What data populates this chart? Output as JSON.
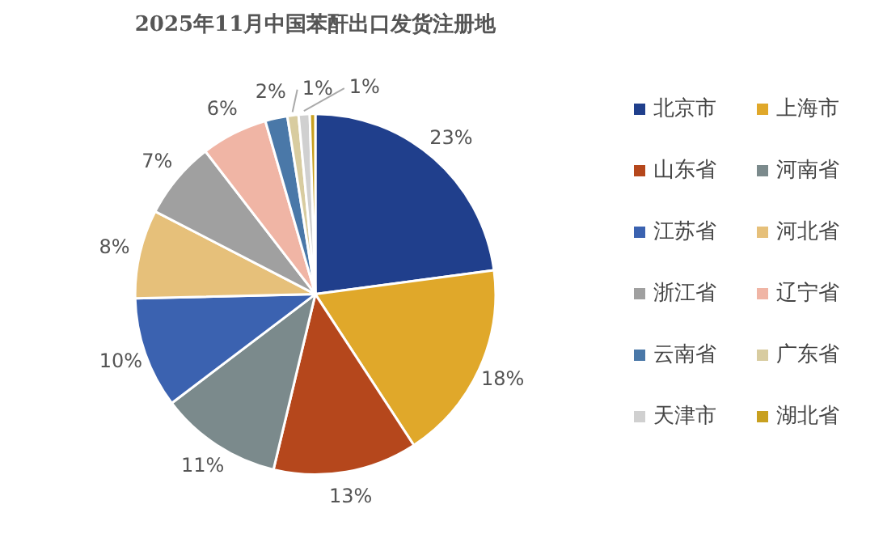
{
  "chart_data": {
    "type": "pie",
    "title": "2025年11月中国苯酐出口发货注册地",
    "categories": [
      "北京市",
      "上海市",
      "山东省",
      "河南省",
      "江苏省",
      "河北省",
      "浙江省",
      "辽宁省",
      "云南省",
      "广东省",
      "天津市",
      "湖北省"
    ],
    "values": [
      23,
      18,
      13,
      11,
      10,
      8,
      7,
      6,
      2,
      1,
      1,
      0.5
    ],
    "value_labels": [
      "23%",
      "18%",
      "13%",
      "11%",
      "10%",
      "8%",
      "7%",
      "6%",
      "2%",
      "1%",
      "1%",
      null
    ],
    "colors": [
      "#203f8c",
      "#e0a82a",
      "#b5471c",
      "#7b8a8c",
      "#3b62b0",
      "#e6c07a",
      "#a0a0a0",
      "#f0b5a5",
      "#4a78a8",
      "#d8cca0",
      "#d0d0d0",
      "#c8a020"
    ],
    "legend": "right"
  }
}
